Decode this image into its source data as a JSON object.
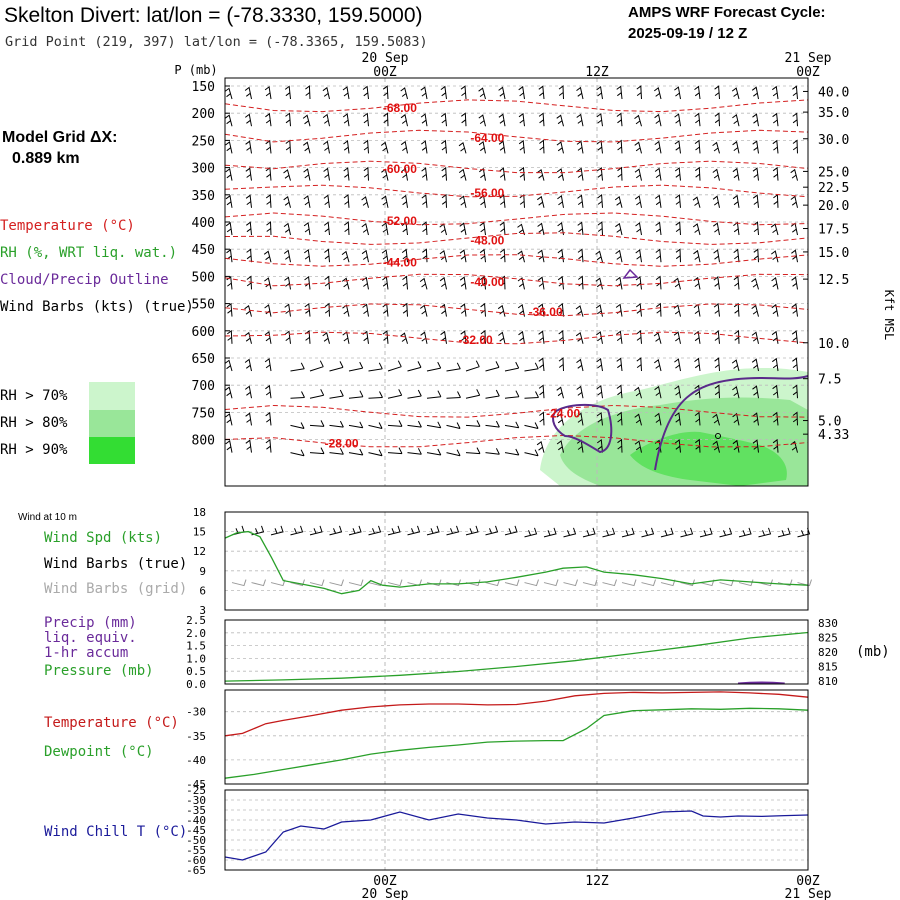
{
  "header": {
    "station": "Skelton Divert:  lat/lon = (-78.3330, 159.5000)",
    "grid_point": "Grid Point (219, 397) lat/lon = (-78.3365, 159.5083)",
    "forecast_cycle_label": "AMPS WRF Forecast Cycle:",
    "forecast_cycle_value": "2025-09-19 / 12  Z",
    "model_grid_label": "Model Grid ΔX:",
    "model_grid_value": "0.889 km"
  },
  "time_axis": {
    "top_dates": [
      "20 Sep",
      "21 Sep"
    ],
    "ticks": [
      "00Z",
      "12Z",
      "00Z"
    ],
    "bottom_dates": [
      "20 Sep",
      "21 Sep"
    ]
  },
  "legend": {
    "temperature": {
      "label": "Temperature (°C)",
      "color": "#d42020"
    },
    "rh": {
      "label": "RH (%, WRT liq. wat.)",
      "color": "#2aa02a"
    },
    "cloud": {
      "label": "Cloud/Precip Outline",
      "color": "#6a2a9a"
    },
    "wind": {
      "label": "Wind Barbs (kts) (true)",
      "color": "#000000"
    },
    "rh_bins": [
      {
        "label": "RH > 70%",
        "color": "#ccf5cc"
      },
      {
        "label": "RH > 80%",
        "color": "#99e699"
      },
      {
        "label": "RH > 90%",
        "color": "#33dd33"
      }
    ]
  },
  "chart_data": [
    {
      "type": "contour",
      "name": "profile",
      "ylabel": "P (mb)",
      "ylabel_right": "Kft MSL",
      "pressure_ticks": [
        150,
        200,
        250,
        300,
        350,
        400,
        450,
        500,
        550,
        600,
        650,
        700,
        750,
        800
      ],
      "height_ticks": [
        "40.0",
        "35.0",
        "30.0",
        "25.0",
        "22.5",
        "20.0",
        "17.5",
        "15.0",
        "12.5",
        "10.0",
        "7.5",
        "5.0",
        "4.33"
      ],
      "height_tick_pressures": [
        160,
        198,
        247,
        307,
        336,
        369,
        412,
        455,
        505,
        622,
        688,
        765,
        790
      ],
      "temperature_labels": [
        {
          "text": "-68.00",
          "t": 0.3,
          "p": 190
        },
        {
          "text": "-64.00",
          "t": 0.45,
          "p": 246
        },
        {
          "text": "-60.00",
          "t": 0.3,
          "p": 303
        },
        {
          "text": "-56.00",
          "t": 0.45,
          "p": 347
        },
        {
          "text": "-52.00",
          "t": 0.3,
          "p": 398
        },
        {
          "text": "-48.00",
          "t": 0.45,
          "p": 434
        },
        {
          "text": "-44.00",
          "t": 0.3,
          "p": 474
        },
        {
          "text": "-40.00",
          "t": 0.45,
          "p": 510
        },
        {
          "text": "-36.00",
          "t": 0.55,
          "p": 565
        },
        {
          "text": "-32.00",
          "t": 0.43,
          "p": 617
        },
        {
          "text": "-24.00",
          "t": 0.58,
          "p": 752
        },
        {
          "text": "-28.00",
          "t": 0.2,
          "p": 807
        }
      ]
    },
    {
      "type": "line",
      "name": "wind10m",
      "title": "Wind at 10 m",
      "series_label": "Wind Spd (kts)",
      "barb_label_true": "Wind Barbs (true)",
      "barb_label_grid": "Wind Barbs (grid)",
      "yticks": [
        3,
        6,
        9,
        12,
        15,
        18
      ],
      "ylim": [
        3,
        18
      ],
      "t": [
        0,
        0.02,
        0.04,
        0.06,
        0.08,
        0.1,
        0.13,
        0.17,
        0.2,
        0.23,
        0.25,
        0.27,
        0.3,
        0.35,
        0.4,
        0.45,
        0.5,
        0.55,
        0.58,
        0.62,
        0.65,
        0.7,
        0.75,
        0.8,
        0.85,
        0.9,
        0.95,
        1.0
      ],
      "values": [
        14.0,
        14.8,
        15.0,
        14.2,
        11.0,
        7.5,
        7.0,
        6.3,
        5.5,
        6.0,
        7.5,
        6.8,
        6.5,
        7.0,
        7.0,
        7.3,
        8.0,
        8.8,
        9.4,
        9.6,
        8.8,
        8.4,
        7.8,
        7.0,
        7.6,
        7.3,
        7.0,
        6.8
      ],
      "color": "#2aa02a"
    },
    {
      "type": "line",
      "name": "precip_pressure",
      "label_precip": "Precip (mm)",
      "label_liq": "liq. equiv.",
      "label_accum": "1-hr accum",
      "label_pressure": "Pressure (mb)",
      "unit_right": "(mb)",
      "yticks_left": [
        "0.0",
        "0.5",
        "1.0",
        "1.5",
        "2.0",
        "2.5"
      ],
      "ylim_left": [
        0,
        2.5
      ],
      "yticks_right": [
        "810",
        "815",
        "820",
        "825",
        "830"
      ],
      "ylim_right": [
        809,
        831
      ],
      "pressure": {
        "t": [
          0,
          0.1,
          0.2,
          0.3,
          0.4,
          0.5,
          0.6,
          0.7,
          0.8,
          0.9,
          1.0
        ],
        "values": [
          810.0,
          810.4,
          811.0,
          812.0,
          813.3,
          815.0,
          817.0,
          819.5,
          822.0,
          824.8,
          826.7
        ],
        "color": "#2aa02a"
      },
      "precip": {
        "t": [
          0.88,
          0.9,
          0.92,
          0.94,
          0.96
        ],
        "values": [
          0.02,
          0.05,
          0.06,
          0.05,
          0.02
        ],
        "color": "#6a2a9a"
      }
    },
    {
      "type": "line",
      "name": "temp_dewpoint",
      "temperature_label": "Temperature (°C)",
      "dewpoint_label": "Dewpoint (°C)",
      "yticks": [
        -45,
        -40,
        -35,
        -30
      ],
      "ylim": [
        -45,
        -25.5
      ],
      "temperature": {
        "t": [
          0,
          0.03,
          0.07,
          0.1,
          0.15,
          0.2,
          0.25,
          0.3,
          0.35,
          0.4,
          0.45,
          0.5,
          0.55,
          0.6,
          0.65,
          0.7,
          0.75,
          0.8,
          0.85,
          0.9,
          0.95,
          1.0
        ],
        "values": [
          -35.0,
          -34.5,
          -32.5,
          -31.8,
          -30.8,
          -29.7,
          -29.0,
          -28.6,
          -28.4,
          -28.4,
          -28.6,
          -28.5,
          -27.8,
          -26.7,
          -26.2,
          -26.0,
          -26.1,
          -26.0,
          -25.9,
          -26.1,
          -26.4,
          -27.0
        ],
        "color": "#c41a1a"
      },
      "dewpoint": {
        "t": [
          0,
          0.05,
          0.1,
          0.15,
          0.2,
          0.25,
          0.3,
          0.35,
          0.4,
          0.45,
          0.5,
          0.55,
          0.58,
          0.62,
          0.65,
          0.7,
          0.75,
          0.8,
          0.85,
          0.9,
          0.95,
          1.0
        ],
        "values": [
          -43.8,
          -43.0,
          -42.0,
          -41.0,
          -40.0,
          -38.8,
          -38.0,
          -37.4,
          -36.9,
          -36.3,
          -36.1,
          -36.0,
          -36.0,
          -33.5,
          -30.8,
          -29.8,
          -29.6,
          -29.4,
          -29.5,
          -29.3,
          -29.4,
          -29.7
        ],
        "color": "#2aa02a"
      }
    },
    {
      "type": "line",
      "name": "wind_chill",
      "label": "Wind Chill T (°C)",
      "yticks": [
        -65,
        -60,
        -55,
        -50,
        -45,
        -40,
        -35,
        -30,
        -25
      ],
      "ylim": [
        -65,
        -25
      ],
      "t": [
        0,
        0.03,
        0.07,
        0.1,
        0.13,
        0.17,
        0.2,
        0.25,
        0.3,
        0.35,
        0.4,
        0.45,
        0.5,
        0.55,
        0.6,
        0.65,
        0.7,
        0.75,
        0.8,
        0.82,
        0.85,
        0.88,
        0.92,
        0.96,
        1.0
      ],
      "values": [
        -58.5,
        -60.0,
        -56.0,
        -46.0,
        -43.0,
        -44.5,
        -41.0,
        -40.0,
        -36.0,
        -40.0,
        -37.0,
        -39.0,
        -40.0,
        -42.0,
        -41.0,
        -41.5,
        -39.0,
        -36.0,
        -35.5,
        -38.0,
        -38.5,
        -38.0,
        -38.2,
        -37.8,
        -37.5
      ],
      "color": "#1a1a9a"
    }
  ]
}
